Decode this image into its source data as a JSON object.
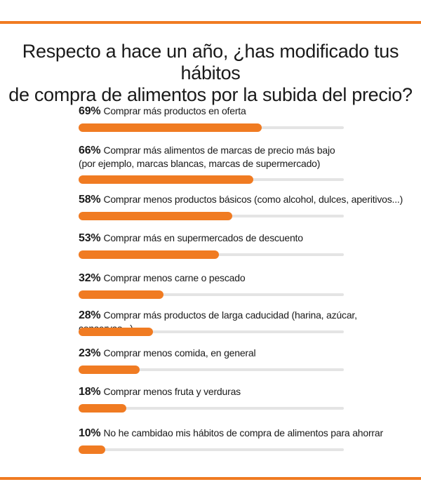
{
  "chart_data": {
    "type": "bar",
    "title": [
      "Respecto a hace un año, ¿has modificado tus hábitos",
      "de compra de alimentos por la subida del precio?"
    ],
    "unit": "%",
    "xlim": [
      0,
      100
    ],
    "orientation": "horizontal",
    "grid": false,
    "legend": "none",
    "categories": [
      [
        "Comprar más productos en oferta"
      ],
      [
        "Comprar más alimentos de marcas de precio más bajo",
        "(por ejemplo, marcas blancas, marcas de supermercado)"
      ],
      [
        "Comprar menos productos básicos (como alcohol, dulces, aperitivos...)"
      ],
      [
        "Comprar más en supermercados de descuento"
      ],
      [
        "Comprar menos carne o pescado"
      ],
      [
        "Comprar más productos de larga caducidad (harina, azúcar, conservas...)"
      ],
      [
        "Comprar menos comida, en general"
      ],
      [
        "Comprar menos fruta y verduras"
      ],
      [
        "No he cambidao mis hábitos de compra de alimentos para ahorrar"
      ]
    ],
    "values": [
      69,
      66,
      58,
      53,
      32,
      28,
      23,
      18,
      10
    ],
    "value_labels": [
      "69%",
      "66%",
      "58%",
      "53%",
      "32%",
      "28%",
      "23%",
      "18%",
      "10%"
    ]
  },
  "colors": {
    "accent": "#f07b22",
    "track": "#e4e4e4",
    "text": "#1a1a1a"
  }
}
